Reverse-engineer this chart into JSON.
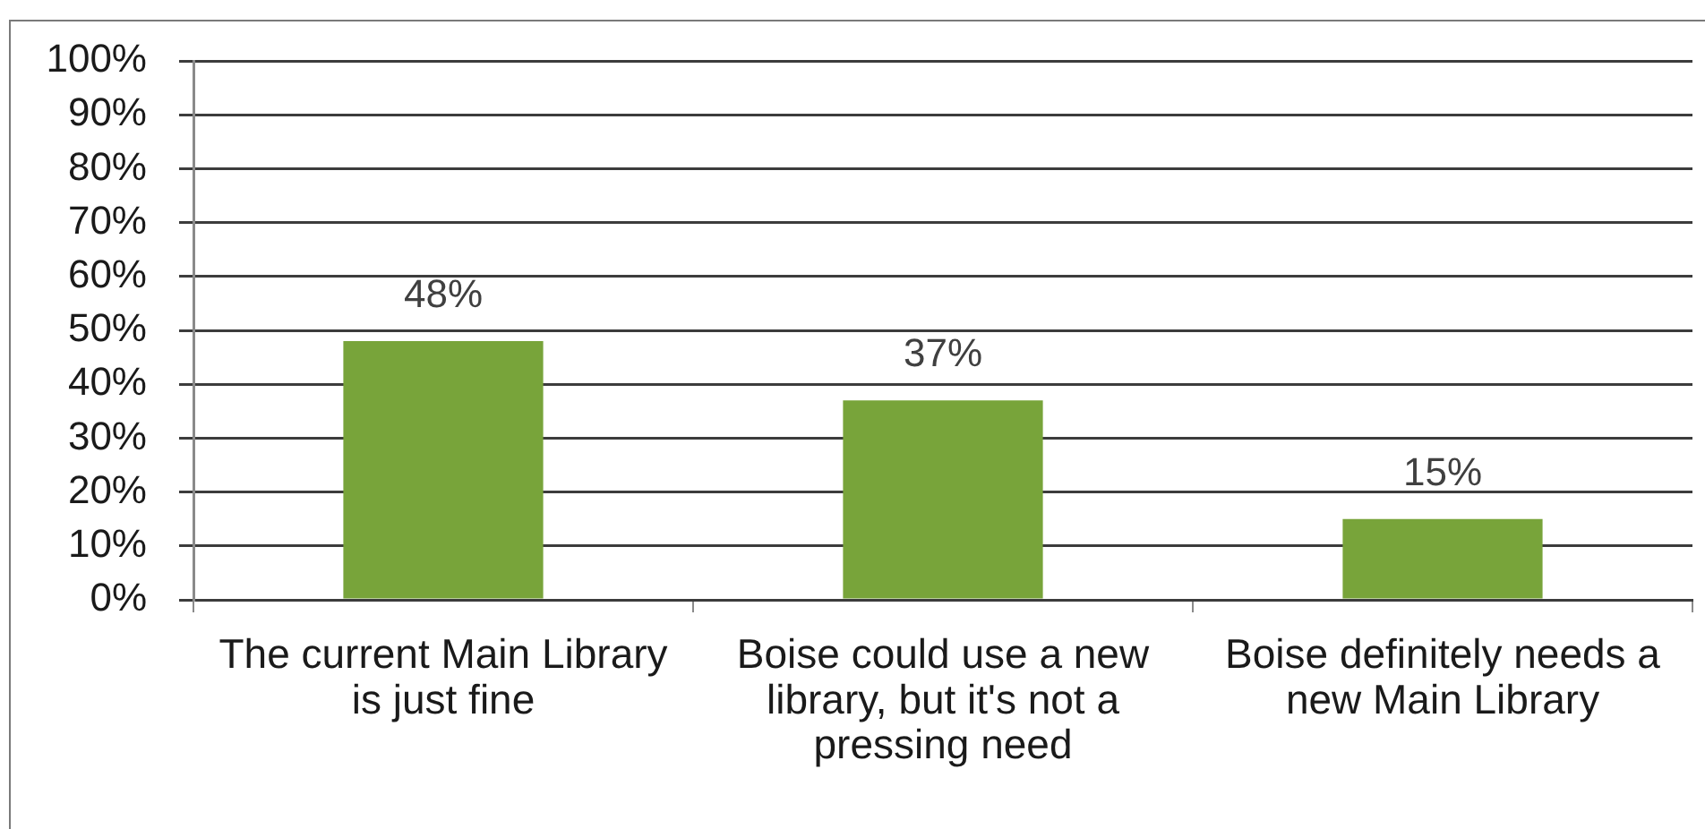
{
  "chart_data": {
    "type": "bar",
    "categories": [
      "The current Main Library is just fine",
      "Boise could use a new library, but it's not a pressing need",
      "Boise definitely needs a new Main Library"
    ],
    "values": [
      48,
      37,
      15
    ],
    "color": "#78a43a",
    "value_labels": [
      "48%",
      "37%",
      "15%"
    ],
    "ylim": [
      0,
      100
    ],
    "yticks": [
      {
        "value": 0,
        "label": "0%"
      },
      {
        "value": 10,
        "label": "10%"
      },
      {
        "value": 20,
        "label": "20%"
      },
      {
        "value": 30,
        "label": "30%"
      },
      {
        "value": 40,
        "label": "40%"
      },
      {
        "value": 50,
        "label": "50%"
      },
      {
        "value": 60,
        "label": "60%"
      },
      {
        "value": 70,
        "label": "70%"
      },
      {
        "value": 80,
        "label": "80%"
      },
      {
        "value": 90,
        "label": "90%"
      },
      {
        "value": 100,
        "label": "100%"
      }
    ],
    "grid": "y"
  }
}
